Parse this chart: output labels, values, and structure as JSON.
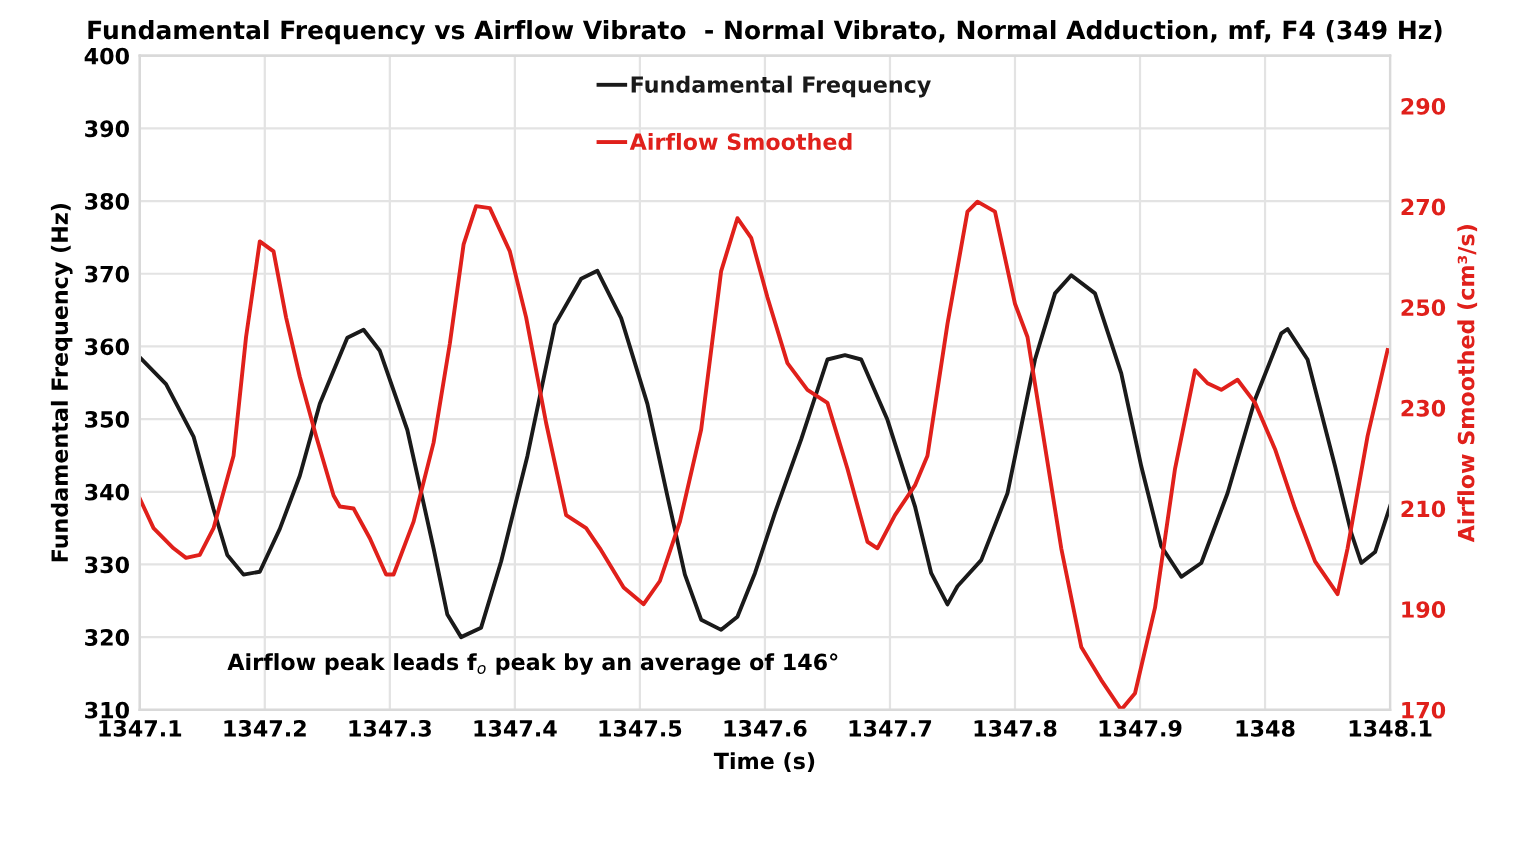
{
  "chart_data": {
    "type": "line",
    "title": "Fundamental Frequency vs Airflow Vibrato  - Normal Vibrato, Normal Adduction, mf, F4 (349 Hz)",
    "xlabel": "Time (s)",
    "ylabel": "Fundamental Frequency (Hz)",
    "y2label": "Airflow Smoothed (cm³/s)",
    "annotations": [
      "Airflow peak leads f$_{o}$ peak by an average of 146°"
    ],
    "xlim": [
      1347.1,
      1348.1
    ],
    "xticks": [
      1347.1,
      1347.2,
      1347.3,
      1347.4,
      1347.5,
      1347.6,
      1347.7,
      1347.8,
      1347.9,
      1348,
      1348.1
    ],
    "ylim": [
      310,
      400
    ],
    "yticks": [
      310,
      320,
      330,
      340,
      350,
      360,
      370,
      380,
      390,
      400
    ],
    "y2lim": [
      170,
      300
    ],
    "y2ticks": [
      170,
      190,
      210,
      230,
      250,
      270,
      290
    ],
    "grid": true,
    "legend": "top",
    "marker": "none",
    "line_style": "solid",
    "series": [
      {
        "name": "Fundamental Frequency",
        "color": "#1a1a1a",
        "x": [
          1347.1,
          1347.121,
          1347.143,
          1347.159,
          1347.17,
          1347.183,
          1347.196,
          1347.212,
          1347.228,
          1347.244,
          1347.266,
          1347.279,
          1347.292,
          1347.314,
          1347.335,
          1347.346,
          1347.357,
          1347.373,
          1347.389,
          1347.41,
          1347.432,
          1347.453,
          1347.466,
          1347.485,
          1347.506,
          1347.522,
          1347.536,
          1347.549,
          1347.565,
          1347.578,
          1347.592,
          1347.608,
          1347.629,
          1347.65,
          1347.664,
          1347.677,
          1347.698,
          1347.72,
          1347.733,
          1347.746,
          1347.754,
          1347.773,
          1347.794,
          1347.816,
          1347.832,
          1347.845,
          1347.864,
          1347.885,
          1347.901,
          1347.917,
          1347.933,
          1347.949,
          1347.97,
          1347.992,
          1348.013,
          1348.018,
          1348.034,
          1348.056,
          1348.069,
          1348.077,
          1348.088,
          1348.1
        ],
        "values": [
          358.5,
          354.8,
          347.6,
          337.6,
          331.3,
          328.6,
          329,
          334.9,
          342.2,
          352.1,
          361.2,
          362.3,
          359.4,
          348.5,
          332.2,
          323.1,
          320,
          321.3,
          330.4,
          344.9,
          363,
          369.3,
          370.4,
          363.9,
          352.1,
          339.4,
          328.6,
          322.4,
          321,
          322.8,
          328.8,
          337.1,
          347.2,
          358.2,
          358.8,
          358.2,
          349.9,
          338,
          328.8,
          324.5,
          327,
          330.6,
          339.8,
          358.2,
          367.3,
          369.8,
          367.3,
          356.3,
          343.5,
          332.5,
          328.3,
          330.2,
          339.8,
          352.7,
          361.8,
          362.4,
          358.2,
          343.5,
          334.3,
          330.2,
          331.7,
          338
        ]
      },
      {
        "name": "Airflow Smoothed",
        "color": "#e0201b",
        "axis": "y2",
        "x": [
          1347.1,
          1347.111,
          1347.127,
          1347.137,
          1347.148,
          1347.159,
          1347.175,
          1347.185,
          1347.196,
          1347.207,
          1347.217,
          1347.228,
          1347.241,
          1347.255,
          1347.26,
          1347.271,
          1347.284,
          1347.297,
          1347.303,
          1347.319,
          1347.335,
          1347.348,
          1347.359,
          1347.369,
          1347.38,
          1347.396,
          1347.409,
          1347.425,
          1347.441,
          1347.457,
          1347.468,
          1347.487,
          1347.503,
          1347.516,
          1347.532,
          1347.549,
          1347.565,
          1347.578,
          1347.589,
          1347.602,
          1347.618,
          1347.634,
          1347.65,
          1347.666,
          1347.682,
          1347.69,
          1347.704,
          1347.72,
          1347.73,
          1347.746,
          1347.762,
          1347.77,
          1347.784,
          1347.8,
          1347.81,
          1347.821,
          1347.837,
          1347.853,
          1347.869,
          1347.885,
          1347.896,
          1347.912,
          1347.928,
          1347.944,
          1347.954,
          1347.965,
          1347.978,
          1347.992,
          1348.008,
          1348.024,
          1348.04,
          1348.058,
          1348.066,
          1348.082,
          1348.098
        ],
        "values": [
          212,
          206.1,
          202.1,
          200.2,
          200.8,
          206.1,
          220.5,
          244.1,
          263.1,
          261.1,
          248,
          236.2,
          224.4,
          212.6,
          210.4,
          210,
          204.1,
          196.9,
          196.9,
          207.4,
          223.1,
          242.8,
          262.5,
          270.1,
          269.7,
          261.1,
          248,
          227,
          208.7,
          206.1,
          202.1,
          194.3,
          191,
          195.6,
          207.4,
          225.7,
          257.2,
          267.7,
          263.8,
          252,
          238.9,
          233.6,
          231,
          217.9,
          203.4,
          202.1,
          208.7,
          214.6,
          220.5,
          246.7,
          269,
          271,
          269,
          250.7,
          244.1,
          227,
          202.1,
          182.5,
          175.9,
          170,
          173.3,
          190.3,
          217.9,
          237.5,
          234.9,
          233.6,
          235.6,
          231,
          221.8,
          210,
          199.5,
          193,
          202.1,
          224.4,
          241.5
        ]
      }
    ]
  }
}
